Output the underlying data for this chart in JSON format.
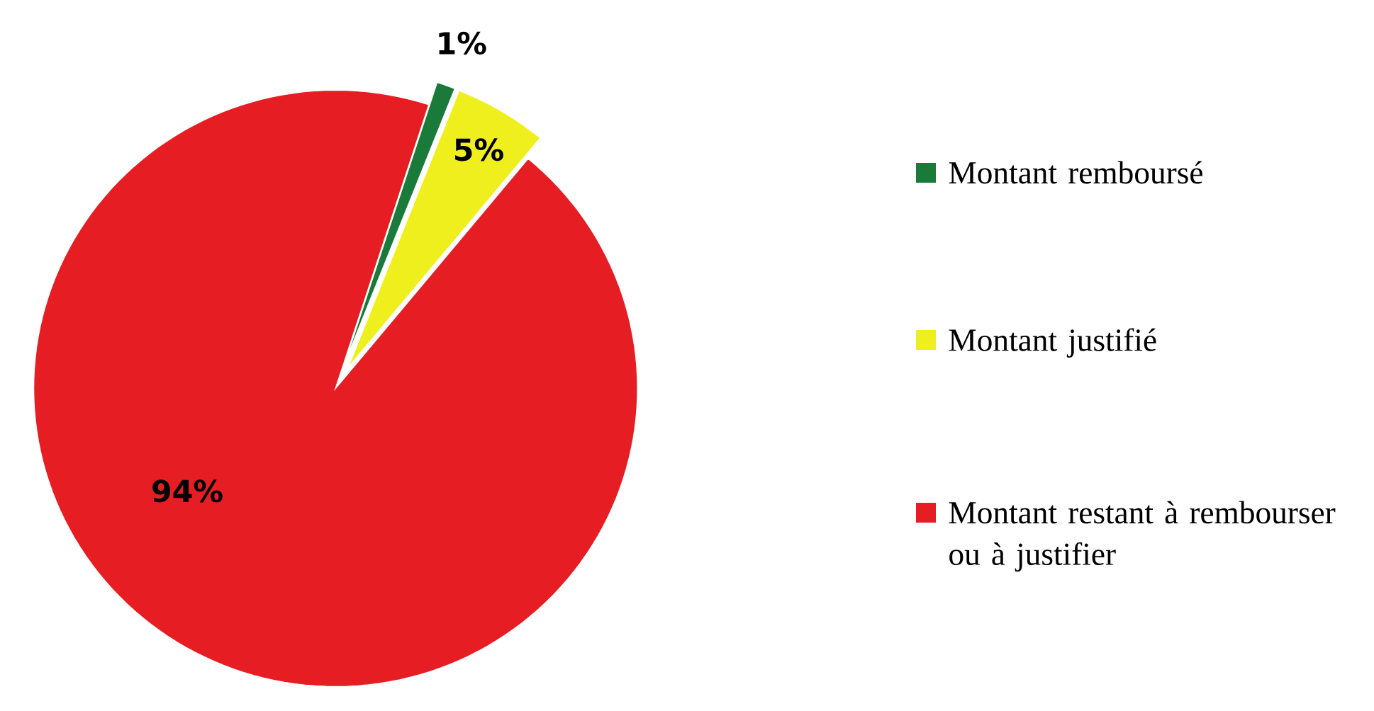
{
  "chart_data": {
    "type": "pie",
    "categories": [
      "Montant remboursé",
      "Montant justifié",
      "Montant restant à rembourser ou à justifier"
    ],
    "values": [
      1,
      5,
      94
    ],
    "colors": [
      "#1a7a3a",
      "#f0ef1e",
      "#e61e24"
    ],
    "value_labels": [
      "1%",
      "5%",
      "94%"
    ],
    "legend": "right"
  }
}
